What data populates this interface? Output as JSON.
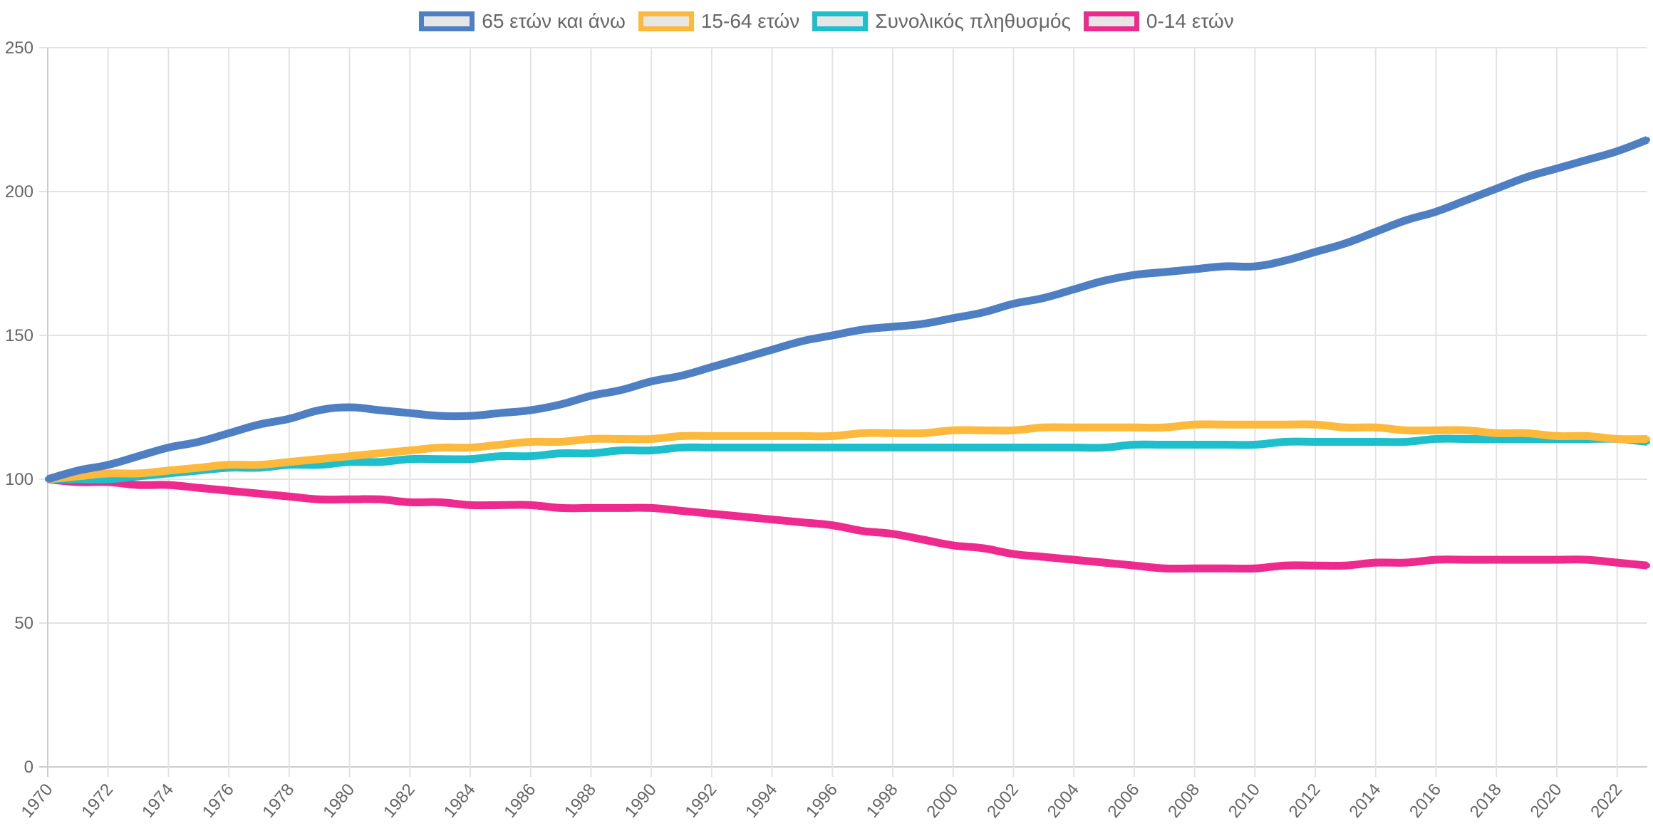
{
  "chart_data": {
    "type": "line",
    "title": "",
    "xlabel": "",
    "ylabel": "",
    "ylim": [
      0,
      250
    ],
    "y_ticks": [
      0,
      50,
      100,
      150,
      200,
      250
    ],
    "grid": true,
    "legend_position": "top-center",
    "x": [
      1970,
      1971,
      1972,
      1973,
      1974,
      1975,
      1976,
      1977,
      1978,
      1979,
      1980,
      1981,
      1982,
      1983,
      1984,
      1985,
      1986,
      1987,
      1988,
      1989,
      1990,
      1991,
      1992,
      1993,
      1994,
      1995,
      1996,
      1997,
      1998,
      1999,
      2000,
      2001,
      2002,
      2003,
      2004,
      2005,
      2006,
      2007,
      2008,
      2009,
      2010,
      2011,
      2012,
      2013,
      2014,
      2015,
      2016,
      2017,
      2018,
      2019,
      2020,
      2021,
      2022,
      2023
    ],
    "x_tick_labels": [
      "1970",
      "1972",
      "1974",
      "1976",
      "1978",
      "1980",
      "1982",
      "1984",
      "1986",
      "1988",
      "1990",
      "1992",
      "1994",
      "1996",
      "1998",
      "2000",
      "2002",
      "2004",
      "2006",
      "2008",
      "2010",
      "2012",
      "2014",
      "2016",
      "2018",
      "2020",
      "2022"
    ],
    "series": [
      {
        "name": "65 ετών και άνω",
        "color": "#4f7fc3",
        "values": [
          100,
          103,
          105,
          108,
          111,
          113,
          116,
          119,
          121,
          124,
          125,
          124,
          123,
          122,
          122,
          123,
          124,
          126,
          129,
          131,
          134,
          136,
          139,
          142,
          145,
          148,
          150,
          152,
          153,
          154,
          156,
          158,
          161,
          163,
          166,
          169,
          171,
          172,
          173,
          174,
          174,
          176,
          179,
          182,
          186,
          190,
          193,
          197,
          201,
          205,
          208,
          211,
          214,
          218
        ]
      },
      {
        "name": "15-64 ετών",
        "color": "#fcb93b",
        "values": [
          100,
          101,
          102,
          102,
          103,
          104,
          105,
          105,
          106,
          107,
          108,
          109,
          110,
          111,
          111,
          112,
          113,
          113,
          114,
          114,
          114,
          115,
          115,
          115,
          115,
          115,
          115,
          116,
          116,
          116,
          117,
          117,
          117,
          118,
          118,
          118,
          118,
          118,
          119,
          119,
          119,
          119,
          119,
          118,
          118,
          117,
          117,
          117,
          116,
          116,
          115,
          115,
          114,
          114
        ]
      },
      {
        "name": "Συνολικός πληθυσμός",
        "color": "#1dbfcc",
        "values": [
          100,
          100,
          100,
          101,
          102,
          103,
          104,
          104,
          105,
          105,
          106,
          106,
          107,
          107,
          107,
          108,
          108,
          109,
          109,
          110,
          110,
          111,
          111,
          111,
          111,
          111,
          111,
          111,
          111,
          111,
          111,
          111,
          111,
          111,
          111,
          111,
          112,
          112,
          112,
          112,
          112,
          113,
          113,
          113,
          113,
          113,
          114,
          114,
          114,
          114,
          114,
          114,
          114,
          113
        ]
      },
      {
        "name": "0-14 ετών",
        "color": "#ee2a8e",
        "values": [
          100,
          99,
          99,
          98,
          98,
          97,
          96,
          95,
          94,
          93,
          93,
          93,
          92,
          92,
          91,
          91,
          91,
          90,
          90,
          90,
          90,
          89,
          88,
          87,
          86,
          85,
          84,
          82,
          81,
          79,
          77,
          76,
          74,
          73,
          72,
          71,
          70,
          69,
          69,
          69,
          69,
          70,
          70,
          70,
          71,
          71,
          72,
          72,
          72,
          72,
          72,
          72,
          71,
          70
        ]
      }
    ]
  }
}
